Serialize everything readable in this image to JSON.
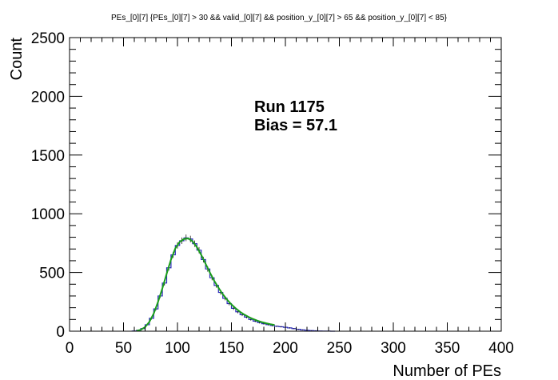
{
  "chart_data": {
    "type": "histogram",
    "title": "PEs_[0][7]  {PEs_[0][7] > 30 && valid_[0][7] && position_y_[0][7] > 65 && position_y_[0][7] < 85}",
    "xlabel": "Number of PEs",
    "ylabel": "Count",
    "xlim": [
      0,
      400
    ],
    "ylim": [
      0,
      2500
    ],
    "x_ticks": [
      0,
      50,
      100,
      150,
      200,
      250,
      300,
      350,
      400
    ],
    "y_ticks": [
      0,
      500,
      1000,
      1500,
      2000,
      2500
    ],
    "grid": false,
    "legend": "none",
    "annotations": [
      "Run 1175",
      "Bias = 57.1"
    ],
    "colors": {
      "histogram": "#2b2bb8",
      "fit": "#1a9e1a"
    },
    "series": [
      {
        "kind": "histogram",
        "x": [
          60,
          64,
          68,
          72,
          76,
          80,
          84,
          88,
          92,
          96,
          100,
          104,
          108,
          112,
          116,
          120,
          124,
          128,
          132,
          136,
          140,
          144,
          148,
          152,
          156,
          160,
          164,
          168,
          172,
          176,
          180,
          184,
          188,
          192,
          196,
          200,
          204,
          208,
          212,
          216,
          220,
          224,
          228,
          232,
          236,
          240,
          244
        ],
        "values": [
          2,
          8,
          22,
          55,
          110,
          190,
          300,
          410,
          540,
          650,
          730,
          770,
          795,
          785,
          745,
          690,
          610,
          530,
          455,
          390,
          330,
          280,
          235,
          195,
          165,
          140,
          120,
          100,
          86,
          74,
          64,
          56,
          48,
          42,
          38,
          33,
          28,
          22,
          16,
          11,
          8,
          5,
          4,
          2,
          1,
          1,
          0
        ]
      },
      {
        "kind": "fit",
        "x": [
          62,
          66,
          70,
          74,
          78,
          82,
          86,
          90,
          94,
          98,
          102,
          106,
          110,
          114,
          118,
          122,
          126,
          130,
          134,
          138,
          142,
          146,
          150,
          154,
          158,
          162,
          166,
          170,
          174,
          178,
          182,
          186,
          190
        ],
        "values": [
          3,
          12,
          35,
          80,
          150,
          250,
          365,
          490,
          610,
          705,
          760,
          785,
          790,
          765,
          715,
          650,
          575,
          500,
          430,
          370,
          315,
          268,
          228,
          194,
          165,
          141,
          121,
          104,
          90,
          78,
          68,
          60,
          53
        ]
      }
    ]
  }
}
